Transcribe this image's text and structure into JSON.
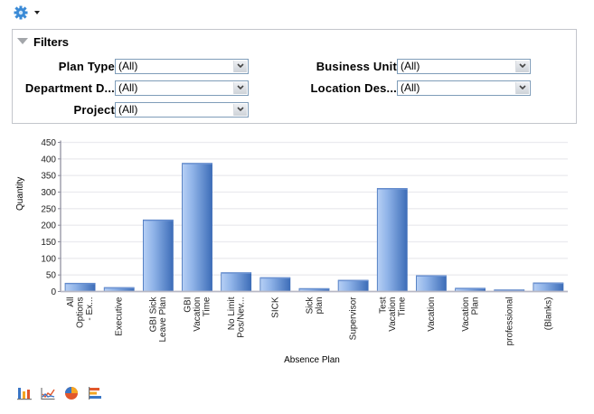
{
  "toolbar": {
    "settings_icon": "gear-icon",
    "settings_menu": "chevron-down-icon"
  },
  "filters": {
    "title": "Filters",
    "fields": [
      {
        "label": "Plan Type",
        "value": "(All)"
      },
      {
        "label": "Department D...",
        "value": "(All)"
      },
      {
        "label": "Project",
        "value": "(All)"
      },
      {
        "label": "Business Unit",
        "value": "(All)"
      },
      {
        "label": "Location Des...",
        "value": "(All)"
      }
    ]
  },
  "chart_data": {
    "type": "bar",
    "title": "",
    "xlabel": "Absence Plan",
    "ylabel": "Quantity",
    "ylim": [
      0,
      450
    ],
    "yticks": [
      0,
      50,
      100,
      150,
      200,
      250,
      300,
      350,
      400,
      450
    ],
    "grid": true,
    "legend": "none",
    "categories": [
      "All Options - Ex...",
      "Executive",
      "GBI Sick Leave Plan",
      "GBI Vacation Time",
      "No Limit Pos/Nev...",
      "SICK",
      "Sick plan",
      "Supervisor",
      "Test Vacation Time",
      "Vacation",
      "Vacation Plan",
      "professional",
      "(Blanks)"
    ],
    "category_lines": [
      [
        "All",
        "Options",
        "- Ex..."
      ],
      [
        "Executive"
      ],
      [
        "GBI Sick",
        "Leave Plan"
      ],
      [
        "GBI",
        "Vacation",
        "Time"
      ],
      [
        "No Limit",
        "Pos/Nev..."
      ],
      [
        "SICK"
      ],
      [
        "Sick",
        "plan"
      ],
      [
        "Supervisor"
      ],
      [
        "Test",
        "Vacation",
        "Time"
      ],
      [
        "Vacation"
      ],
      [
        "Vacation",
        "Plan"
      ],
      [
        "professional"
      ],
      [
        "(Blanks)"
      ]
    ],
    "values": [
      25,
      12,
      216,
      387,
      57,
      42,
      9,
      34,
      311,
      48,
      10,
      5,
      26
    ]
  },
  "chart_types": [
    {
      "name": "bar-chart-icon"
    },
    {
      "name": "line-chart-icon"
    },
    {
      "name": "pie-chart-icon"
    },
    {
      "name": "horizontal-bar-chart-icon"
    }
  ],
  "colors": {
    "bar_light": "#b7d0f5",
    "bar_dark": "#3d6db8",
    "grid": "#ebebef",
    "axis": "#8a8a9a"
  }
}
